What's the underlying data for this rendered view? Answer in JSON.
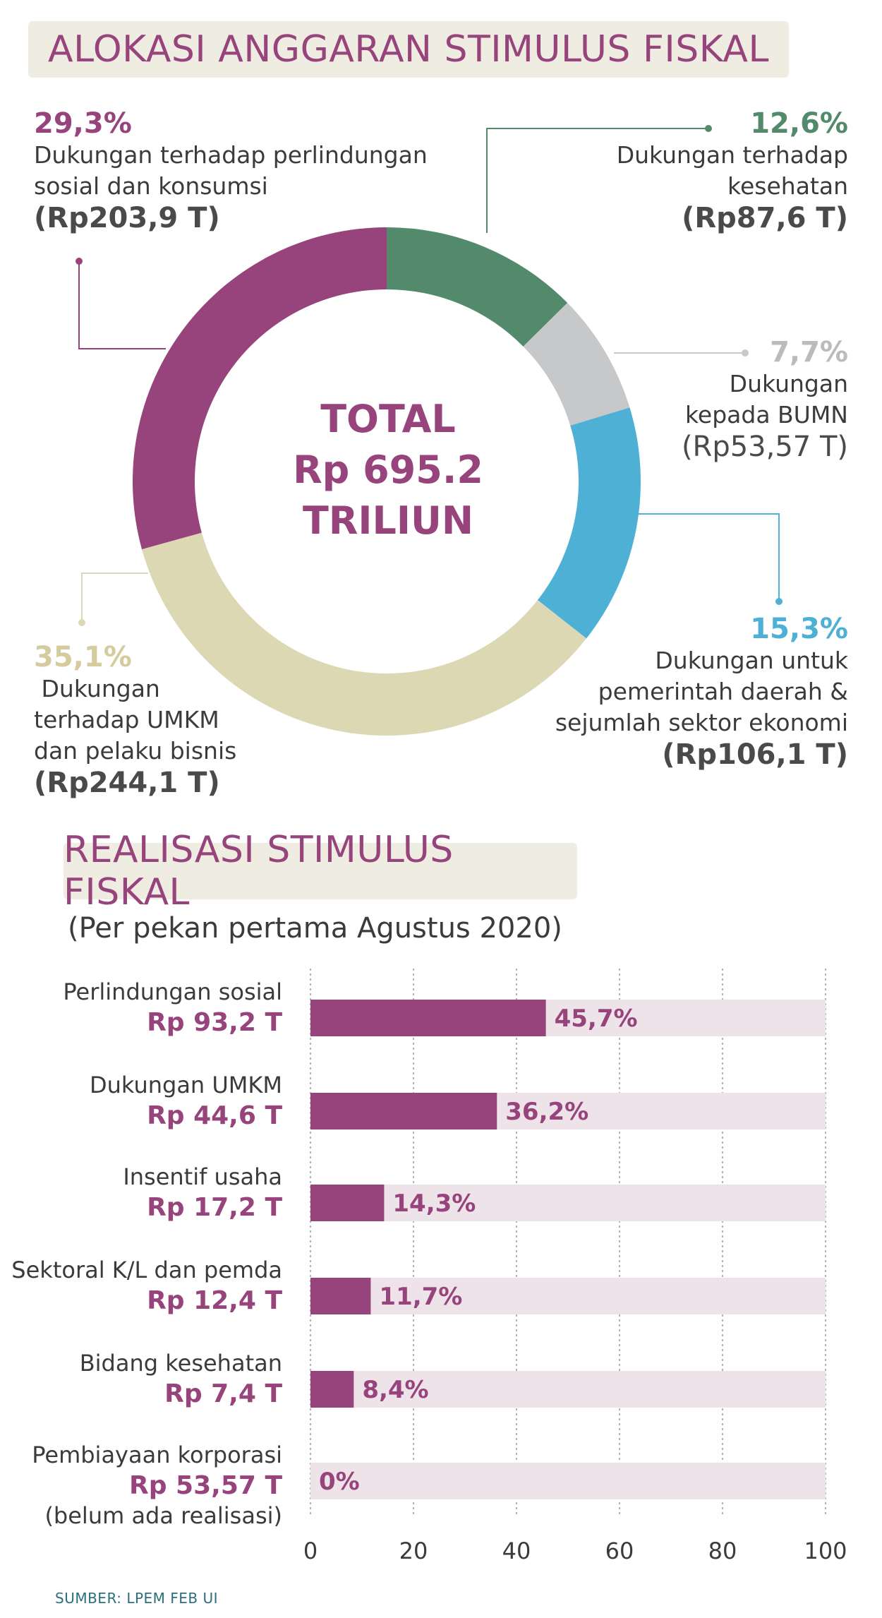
{
  "donut": {
    "title": "ALOKASI ANGGARAN STIMULUS FISKAL",
    "total_line1": "TOTAL",
    "total_line2": "Rp 695.2",
    "total_line3": "TRILIUN",
    "segments": [
      {
        "pct": "12,6%",
        "line1": "Dukungan terhadap",
        "line2": "kesehatan",
        "line3": "",
        "amount": "(Rp87,6 T)",
        "value": 12.6,
        "color": "#528a6b"
      },
      {
        "pct": "7,7%",
        "line1": "Dukungan",
        "line2": "kepada BUMN",
        "line3": "",
        "amount": "(Rp53,57 T)",
        "value": 7.7,
        "color": "#c6c8c9"
      },
      {
        "pct": "15,3%",
        "line1": "Dukungan untuk",
        "line2": "pemerintah daerah &",
        "line3": "sejumlah sektor ekonomi",
        "amount": "(Rp106,1 T)",
        "value": 15.3,
        "color": "#4fb0d6"
      },
      {
        "pct": "35,1%",
        "line1": " Dukungan",
        "line2": "terhadap UMKM",
        "line3": "dan pelaku bisnis",
        "amount": "(Rp244,1 T)",
        "value": 35.1,
        "color": "#ddd8b4"
      },
      {
        "pct": "29,3%",
        "line1": "Dukungan terhadap perlindungan",
        "line2": "sosial dan konsumsi",
        "line3": "",
        "amount": "(Rp203,9 T)",
        "value": 29.3,
        "color": "#97447c"
      }
    ]
  },
  "bars": {
    "title": "REALISASI STIMULUS FISKAL",
    "subtitle": "(Per pekan pertama Agustus 2020)",
    "source": "SUMBER: LPEM FEB UI"
  },
  "chart_data": {
    "type": "bar",
    "orientation": "horizontal",
    "title": "REALISASI STIMULUS FISKAL",
    "subtitle": "(Per pekan pertama Agustus 2020)",
    "categories": [
      "Perlindungan sosial",
      "Dukungan UMKM",
      "Insentif usaha",
      "Sektoral K/L dan pemda",
      "Bidang kesehatan",
      "Pembiayaan korporasi"
    ],
    "amounts": [
      "Rp 93,2 T",
      "Rp 44,6 T",
      "Rp 17,2 T",
      "Rp 12,4 T",
      "Rp 7,4 T",
      "Rp 53,57 T"
    ],
    "notes": [
      "",
      "",
      "",
      "",
      "",
      "(belum ada realisasi)"
    ],
    "values": [
      45.7,
      36.2,
      14.3,
      11.7,
      8.4,
      0
    ],
    "value_labels": [
      "45,7%",
      "36,2%",
      "14,3%",
      "11,7%",
      "8,4%",
      "0%"
    ],
    "xlim": [
      0,
      100
    ],
    "xticks": [
      "0",
      "20",
      "40",
      "60",
      "80",
      "100"
    ],
    "grid": true,
    "bar_color": "#97447c",
    "track_color": "#ede3e9"
  }
}
